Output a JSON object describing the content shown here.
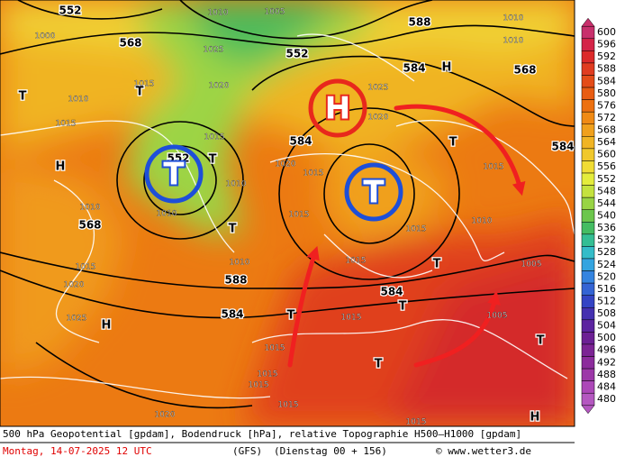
{
  "map": {
    "labels": [
      "552",
      "1010",
      "1005",
      "588",
      "1010",
      "1000",
      "568",
      "552",
      "1025",
      "584",
      "H",
      "568",
      "1010",
      "T",
      "1010",
      "T",
      "1015",
      "1020",
      "1025",
      "1015",
      "1020",
      "584",
      "H",
      "552",
      "1015",
      "T",
      "1020",
      "1015",
      "T",
      "1015",
      "584",
      "1010",
      "1010",
      "1010",
      "568",
      "1015",
      "1010",
      "1015",
      "T",
      "1010",
      "1015",
      "588",
      "584",
      "1005",
      "T",
      "1015",
      "1020",
      "584",
      "1025",
      "H",
      "T",
      "1015",
      "1005",
      "T",
      "1015",
      "1015",
      "T",
      "T",
      "1015",
      "1015",
      "1020",
      "1015",
      "H"
    ],
    "pressure_centers": [
      {
        "text": "H",
        "color": "#e8281c"
      },
      {
        "text": "T",
        "color": "#1e4fd8"
      },
      {
        "text": "T",
        "color": "#1e4fd8"
      }
    ]
  },
  "colorbar": {
    "labels": [
      "600",
      "596",
      "592",
      "588",
      "584",
      "580",
      "576",
      "572",
      "568",
      "564",
      "560",
      "556",
      "552",
      "548",
      "544",
      "540",
      "536",
      "532",
      "528",
      "524",
      "520",
      "516",
      "512",
      "508",
      "504",
      "500",
      "496",
      "492",
      "488",
      "484",
      "480"
    ],
    "colors": [
      "#c8306c",
      "#d42448",
      "#dc2a2a",
      "#e03c20",
      "#e44c18",
      "#e85c12",
      "#ec7010",
      "#f08a14",
      "#f0a01c",
      "#f0b424",
      "#f0c82c",
      "#f0dc34",
      "#e4ec3c",
      "#c4e23e",
      "#98d444",
      "#6cc64c",
      "#44bc62",
      "#34be94",
      "#34bcc8",
      "#34a4e0",
      "#3484e0",
      "#3464d4",
      "#3444c4",
      "#4430b0",
      "#5c24a0",
      "#6c2094",
      "#7c2494",
      "#8c2c9c",
      "#9c38a8",
      "#ac48b8",
      "#b458c0"
    ]
  },
  "footer": {
    "line1": "500 hPa Geopotential [gpdam], Bodendruck [hPa], relative Topographie H500–H1000 [gpdam]",
    "date": "Montag, 14-07-2025  12 UTC",
    "model": "(GFS)",
    "run": "(Dienstag 00 + 156)",
    "credit": "© www.wetter3.de"
  }
}
